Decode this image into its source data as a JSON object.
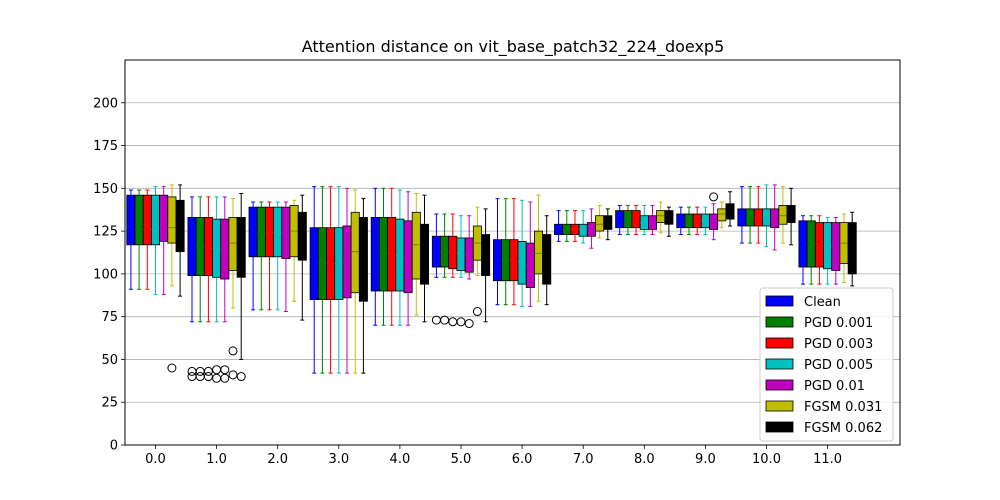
{
  "chart_data": {
    "type": "box",
    "title": "Attention distance on vit_base_patch32_224_doexp5",
    "xlabel": "",
    "ylabel": "",
    "ylim": [
      0,
      225
    ],
    "yticks": [
      0,
      25,
      50,
      75,
      100,
      125,
      150,
      175,
      200
    ],
    "categories": [
      "0.0",
      "1.0",
      "2.0",
      "3.0",
      "4.0",
      "5.0",
      "6.0",
      "7.0",
      "8.0",
      "9.0",
      "10.0",
      "11.0"
    ],
    "grid": "y",
    "legend_position": "lower right",
    "series": [
      {
        "name": "Clean",
        "color": "#0000ff",
        "boxes": [
          {
            "q1": 117,
            "median": 126,
            "q3": 146,
            "wlo": 91,
            "whi": 149,
            "outliers": []
          },
          {
            "q1": 99,
            "median": 116,
            "q3": 133,
            "wlo": 72,
            "whi": 145,
            "outliers": []
          },
          {
            "q1": 110,
            "median": 124,
            "q3": 139,
            "wlo": 79,
            "whi": 142,
            "outliers": []
          },
          {
            "q1": 85,
            "median": 106,
            "q3": 127,
            "wlo": 42,
            "whi": 151,
            "outliers": []
          },
          {
            "q1": 90,
            "median": 112,
            "q3": 133,
            "wlo": 70,
            "whi": 150,
            "outliers": []
          },
          {
            "q1": 104,
            "median": 113,
            "q3": 122,
            "wlo": 98,
            "whi": 135,
            "outliers": []
          },
          {
            "q1": 96,
            "median": 108,
            "q3": 120,
            "wlo": 82,
            "whi": 144,
            "outliers": []
          },
          {
            "q1": 123,
            "median": 126,
            "q3": 129,
            "wlo": 119,
            "whi": 137,
            "outliers": []
          },
          {
            "q1": 127,
            "median": 132,
            "q3": 137,
            "wlo": 123,
            "whi": 140,
            "outliers": []
          },
          {
            "q1": 127,
            "median": 131,
            "q3": 135,
            "wlo": 123,
            "whi": 139,
            "outliers": []
          },
          {
            "q1": 128,
            "median": 133,
            "q3": 138,
            "wlo": 118,
            "whi": 151,
            "outliers": []
          },
          {
            "q1": 104,
            "median": 117,
            "q3": 131,
            "wlo": 94,
            "whi": 134,
            "outliers": []
          }
        ]
      },
      {
        "name": "PGD 0.001",
        "color": "#008000",
        "boxes": [
          {
            "q1": 117,
            "median": 126,
            "q3": 146,
            "wlo": 91,
            "whi": 149,
            "outliers": []
          },
          {
            "q1": 99,
            "median": 116,
            "q3": 133,
            "wlo": 72,
            "whi": 145,
            "outliers": []
          },
          {
            "q1": 110,
            "median": 124,
            "q3": 139,
            "wlo": 79,
            "whi": 142,
            "outliers": []
          },
          {
            "q1": 85,
            "median": 106,
            "q3": 127,
            "wlo": 42,
            "whi": 151,
            "outliers": []
          },
          {
            "q1": 90,
            "median": 112,
            "q3": 133,
            "wlo": 70,
            "whi": 150,
            "outliers": []
          },
          {
            "q1": 104,
            "median": 113,
            "q3": 122,
            "wlo": 98,
            "whi": 135,
            "outliers": []
          },
          {
            "q1": 96,
            "median": 108,
            "q3": 120,
            "wlo": 82,
            "whi": 144,
            "outliers": []
          },
          {
            "q1": 123,
            "median": 126,
            "q3": 129,
            "wlo": 119,
            "whi": 137,
            "outliers": []
          },
          {
            "q1": 127,
            "median": 132,
            "q3": 137,
            "wlo": 123,
            "whi": 140,
            "outliers": []
          },
          {
            "q1": 127,
            "median": 131,
            "q3": 135,
            "wlo": 123,
            "whi": 139,
            "outliers": []
          },
          {
            "q1": 128,
            "median": 133,
            "q3": 138,
            "wlo": 118,
            "whi": 151,
            "outliers": []
          },
          {
            "q1": 104,
            "median": 117,
            "q3": 131,
            "wlo": 94,
            "whi": 134,
            "outliers": []
          }
        ]
      },
      {
        "name": "PGD 0.003",
        "color": "#ff0000",
        "boxes": [
          {
            "q1": 117,
            "median": 126,
            "q3": 146,
            "wlo": 91,
            "whi": 149,
            "outliers": []
          },
          {
            "q1": 99,
            "median": 116,
            "q3": 133,
            "wlo": 72,
            "whi": 145,
            "outliers": []
          },
          {
            "q1": 110,
            "median": 124,
            "q3": 139,
            "wlo": 79,
            "whi": 142,
            "outliers": []
          },
          {
            "q1": 85,
            "median": 106,
            "q3": 127,
            "wlo": 42,
            "whi": 151,
            "outliers": []
          },
          {
            "q1": 90,
            "median": 112,
            "q3": 133,
            "wlo": 70,
            "whi": 150,
            "outliers": []
          },
          {
            "q1": 103,
            "median": 113,
            "q3": 122,
            "wlo": 98,
            "whi": 135,
            "outliers": []
          },
          {
            "q1": 96,
            "median": 108,
            "q3": 120,
            "wlo": 82,
            "whi": 144,
            "outliers": []
          },
          {
            "q1": 123,
            "median": 126,
            "q3": 129,
            "wlo": 119,
            "whi": 137,
            "outliers": []
          },
          {
            "q1": 127,
            "median": 132,
            "q3": 137,
            "wlo": 123,
            "whi": 140,
            "outliers": []
          },
          {
            "q1": 127,
            "median": 131,
            "q3": 135,
            "wlo": 123,
            "whi": 139,
            "outliers": []
          },
          {
            "q1": 128,
            "median": 133,
            "q3": 138,
            "wlo": 118,
            "whi": 151,
            "outliers": []
          },
          {
            "q1": 104,
            "median": 117,
            "q3": 130,
            "wlo": 94,
            "whi": 134,
            "outliers": []
          }
        ]
      },
      {
        "name": "PGD 0.005",
        "color": "#00bfbf",
        "boxes": [
          {
            "q1": 117,
            "median": 126,
            "q3": 146,
            "wlo": 88,
            "whi": 151,
            "outliers": []
          },
          {
            "q1": 98,
            "median": 115,
            "q3": 132,
            "wlo": 72,
            "whi": 145,
            "outliers": []
          },
          {
            "q1": 110,
            "median": 124,
            "q3": 139,
            "wlo": 79,
            "whi": 142,
            "outliers": []
          },
          {
            "q1": 85,
            "median": 106,
            "q3": 127,
            "wlo": 42,
            "whi": 151,
            "outliers": []
          },
          {
            "q1": 90,
            "median": 111,
            "q3": 132,
            "wlo": 70,
            "whi": 149,
            "outliers": []
          },
          {
            "q1": 102,
            "median": 112,
            "q3": 121,
            "wlo": 98,
            "whi": 134,
            "outliers": []
          },
          {
            "q1": 94,
            "median": 107,
            "q3": 119,
            "wlo": 81,
            "whi": 143,
            "outliers": []
          },
          {
            "q1": 122,
            "median": 126,
            "q3": 129,
            "wlo": 118,
            "whi": 137,
            "outliers": []
          },
          {
            "q1": 126,
            "median": 130,
            "q3": 134,
            "wlo": 123,
            "whi": 140,
            "outliers": []
          },
          {
            "q1": 127,
            "median": 131,
            "q3": 135,
            "wlo": 123,
            "whi": 139,
            "outliers": []
          },
          {
            "q1": 128,
            "median": 133,
            "q3": 138,
            "wlo": 116,
            "whi": 152,
            "outliers": []
          },
          {
            "q1": 103,
            "median": 116,
            "q3": 130,
            "wlo": 94,
            "whi": 133,
            "outliers": []
          }
        ]
      },
      {
        "name": "PGD 0.01",
        "color": "#bf00bf",
        "boxes": [
          {
            "q1": 119,
            "median": 127,
            "q3": 146,
            "wlo": 88,
            "whi": 151,
            "outliers": []
          },
          {
            "q1": 97,
            "median": 114,
            "q3": 132,
            "wlo": 72,
            "whi": 145,
            "outliers": []
          },
          {
            "q1": 109,
            "median": 124,
            "q3": 139,
            "wlo": 78,
            "whi": 142,
            "outliers": []
          },
          {
            "q1": 86,
            "median": 107,
            "q3": 128,
            "wlo": 42,
            "whi": 150,
            "outliers": []
          },
          {
            "q1": 89,
            "median": 110,
            "q3": 131,
            "wlo": 70,
            "whi": 148,
            "outliers": []
          },
          {
            "q1": 101,
            "median": 111,
            "q3": 121,
            "wlo": 97,
            "whi": 134,
            "outliers": []
          },
          {
            "q1": 92,
            "median": 105,
            "q3": 118,
            "wlo": 81,
            "whi": 142,
            "outliers": []
          },
          {
            "q1": 122,
            "median": 126,
            "q3": 130,
            "wlo": 115,
            "whi": 138,
            "outliers": []
          },
          {
            "q1": 126,
            "median": 130,
            "q3": 134,
            "wlo": 123,
            "whi": 140,
            "outliers": []
          },
          {
            "q1": 126,
            "median": 131,
            "q3": 135,
            "wlo": 120,
            "whi": 141,
            "outliers": []
          },
          {
            "q1": 127,
            "median": 132,
            "q3": 138,
            "wlo": 114,
            "whi": 152,
            "outliers": []
          },
          {
            "q1": 102,
            "median": 116,
            "q3": 130,
            "wlo": 94,
            "whi": 133,
            "outliers": []
          }
        ]
      },
      {
        "name": "FGSM 0.031",
        "color": "#bfbf00",
        "boxes": [
          {
            "q1": 118,
            "median": 127,
            "q3": 145,
            "wlo": 93,
            "whi": 152,
            "outliers": []
          },
          {
            "q1": 102,
            "median": 118,
            "q3": 133,
            "wlo": 80,
            "whi": 144,
            "outliers": []
          },
          {
            "q1": 110,
            "median": 125,
            "q3": 140,
            "wlo": 84,
            "whi": 143,
            "outliers": []
          },
          {
            "q1": 89,
            "median": 113,
            "q3": 136,
            "wlo": 42,
            "whi": 149,
            "outliers": []
          },
          {
            "q1": 97,
            "median": 117,
            "q3": 136,
            "wlo": 76,
            "whi": 147,
            "outliers": []
          },
          {
            "q1": 108,
            "median": 118,
            "q3": 128,
            "wlo": 99,
            "whi": 139,
            "outliers": []
          },
          {
            "q1": 100,
            "median": 112,
            "q3": 125,
            "wlo": 84,
            "whi": 146,
            "outliers": []
          },
          {
            "q1": 125,
            "median": 129,
            "q3": 134,
            "wlo": 121,
            "whi": 140,
            "outliers": []
          },
          {
            "q1": 130,
            "median": 134,
            "q3": 137,
            "wlo": 124,
            "whi": 142,
            "outliers": []
          },
          {
            "q1": 131,
            "median": 135,
            "q3": 138,
            "wlo": 127,
            "whi": 142,
            "outliers": []
          },
          {
            "q1": 129,
            "median": 134,
            "q3": 140,
            "wlo": 118,
            "whi": 151,
            "outliers": []
          },
          {
            "q1": 106,
            "median": 118,
            "q3": 130,
            "wlo": 95,
            "whi": 135,
            "outliers": []
          }
        ]
      },
      {
        "name": "FGSM 0.062",
        "color": "#000000",
        "boxes": [
          {
            "q1": 113,
            "median": 126,
            "q3": 143,
            "wlo": 87,
            "whi": 152,
            "outliers": []
          },
          {
            "q1": 98,
            "median": 117,
            "q3": 133,
            "wlo": 50,
            "whi": 147,
            "outliers": []
          },
          {
            "q1": 108,
            "median": 122,
            "q3": 136,
            "wlo": 73,
            "whi": 146,
            "outliers": []
          },
          {
            "q1": 84,
            "median": 108,
            "q3": 133,
            "wlo": 42,
            "whi": 144,
            "outliers": []
          },
          {
            "q1": 94,
            "median": 113,
            "q3": 129,
            "wlo": 72,
            "whi": 146,
            "outliers": []
          },
          {
            "q1": 99,
            "median": 112,
            "q3": 123,
            "wlo": 72,
            "whi": 138,
            "outliers": []
          },
          {
            "q1": 94,
            "median": 108,
            "q3": 123,
            "wlo": 82,
            "whi": 134,
            "outliers": []
          },
          {
            "q1": 126,
            "median": 130,
            "q3": 134,
            "wlo": 120,
            "whi": 138,
            "outliers": []
          },
          {
            "q1": 129,
            "median": 133,
            "q3": 137,
            "wlo": 122,
            "whi": 139,
            "outliers": []
          },
          {
            "q1": 132,
            "median": 137,
            "q3": 141,
            "wlo": 128,
            "whi": 148,
            "outliers": []
          },
          {
            "q1": 130,
            "median": 135,
            "q3": 140,
            "wlo": 117,
            "whi": 150,
            "outliers": []
          },
          {
            "q1": 100,
            "median": 115,
            "q3": 130,
            "wlo": 93,
            "whi": 136,
            "outliers": []
          }
        ]
      }
    ],
    "outliers": [
      {
        "category": "0.0",
        "series": "FGSM 0.031",
        "value": 45
      },
      {
        "category": "1.0",
        "series": "Clean",
        "value": 43
      },
      {
        "category": "1.0",
        "series": "Clean",
        "value": 40
      },
      {
        "category": "1.0",
        "series": "PGD 0.001",
        "value": 43
      },
      {
        "category": "1.0",
        "series": "PGD 0.001",
        "value": 40
      },
      {
        "category": "1.0",
        "series": "PGD 0.003",
        "value": 43
      },
      {
        "category": "1.0",
        "series": "PGD 0.003",
        "value": 40
      },
      {
        "category": "1.0",
        "series": "PGD 0.005",
        "value": 44
      },
      {
        "category": "1.0",
        "series": "PGD 0.005",
        "value": 39
      },
      {
        "category": "1.0",
        "series": "PGD 0.01",
        "value": 44
      },
      {
        "category": "1.0",
        "series": "PGD 0.01",
        "value": 39
      },
      {
        "category": "1.0",
        "series": "FGSM 0.031",
        "value": 41
      },
      {
        "category": "1.0",
        "series": "FGSM 0.031",
        "value": 55
      },
      {
        "category": "1.0",
        "series": "FGSM 0.062",
        "value": 40
      },
      {
        "category": "5.0",
        "series": "Clean",
        "value": 73
      },
      {
        "category": "5.0",
        "series": "PGD 0.001",
        "value": 73
      },
      {
        "category": "5.0",
        "series": "PGD 0.003",
        "value": 72
      },
      {
        "category": "5.0",
        "series": "PGD 0.005",
        "value": 72
      },
      {
        "category": "5.0",
        "series": "PGD 0.01",
        "value": 71
      },
      {
        "category": "5.0",
        "series": "FGSM 0.031",
        "value": 78
      },
      {
        "category": "9.0",
        "series": "PGD 0.01",
        "value": 145
      }
    ]
  }
}
